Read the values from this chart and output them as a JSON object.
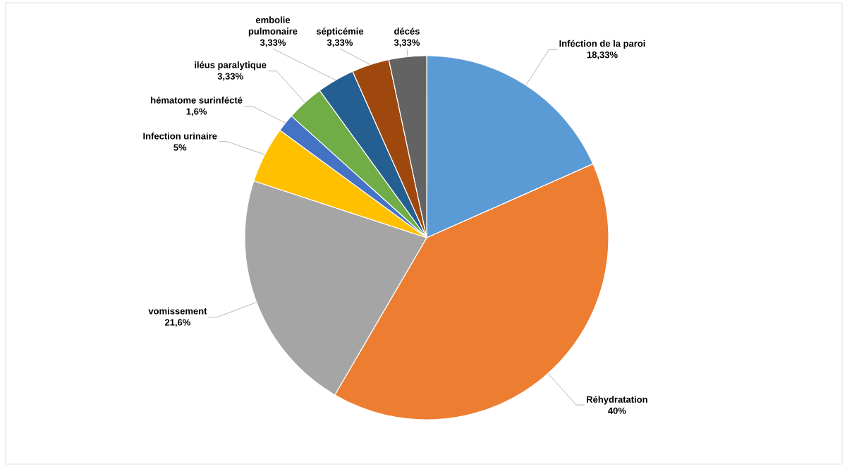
{
  "chart_data": {
    "type": "pie",
    "categories": [
      "Inféction de la paroi",
      "Réhydratation",
      "vomissement",
      "Infection urinaire",
      "hématome surinfécté",
      "iléus paralytique",
      "embolie pulmonaire",
      "sépticémie",
      "décés"
    ],
    "values": [
      18.33,
      40,
      21.6,
      5,
      1.6,
      3.33,
      3.33,
      3.33,
      3.33
    ],
    "value_labels": [
      "18,33%",
      "40%",
      "21,6%",
      "5%",
      "1,6%",
      "3,33%",
      "3,33%",
      "3,33%",
      "3,33%"
    ],
    "colors": [
      "#5b9bd5",
      "#ed7d31",
      "#a5a5a5",
      "#ffc000",
      "#4472c4",
      "#70ad47",
      "#255e91",
      "#9e480e",
      "#636363"
    ]
  }
}
